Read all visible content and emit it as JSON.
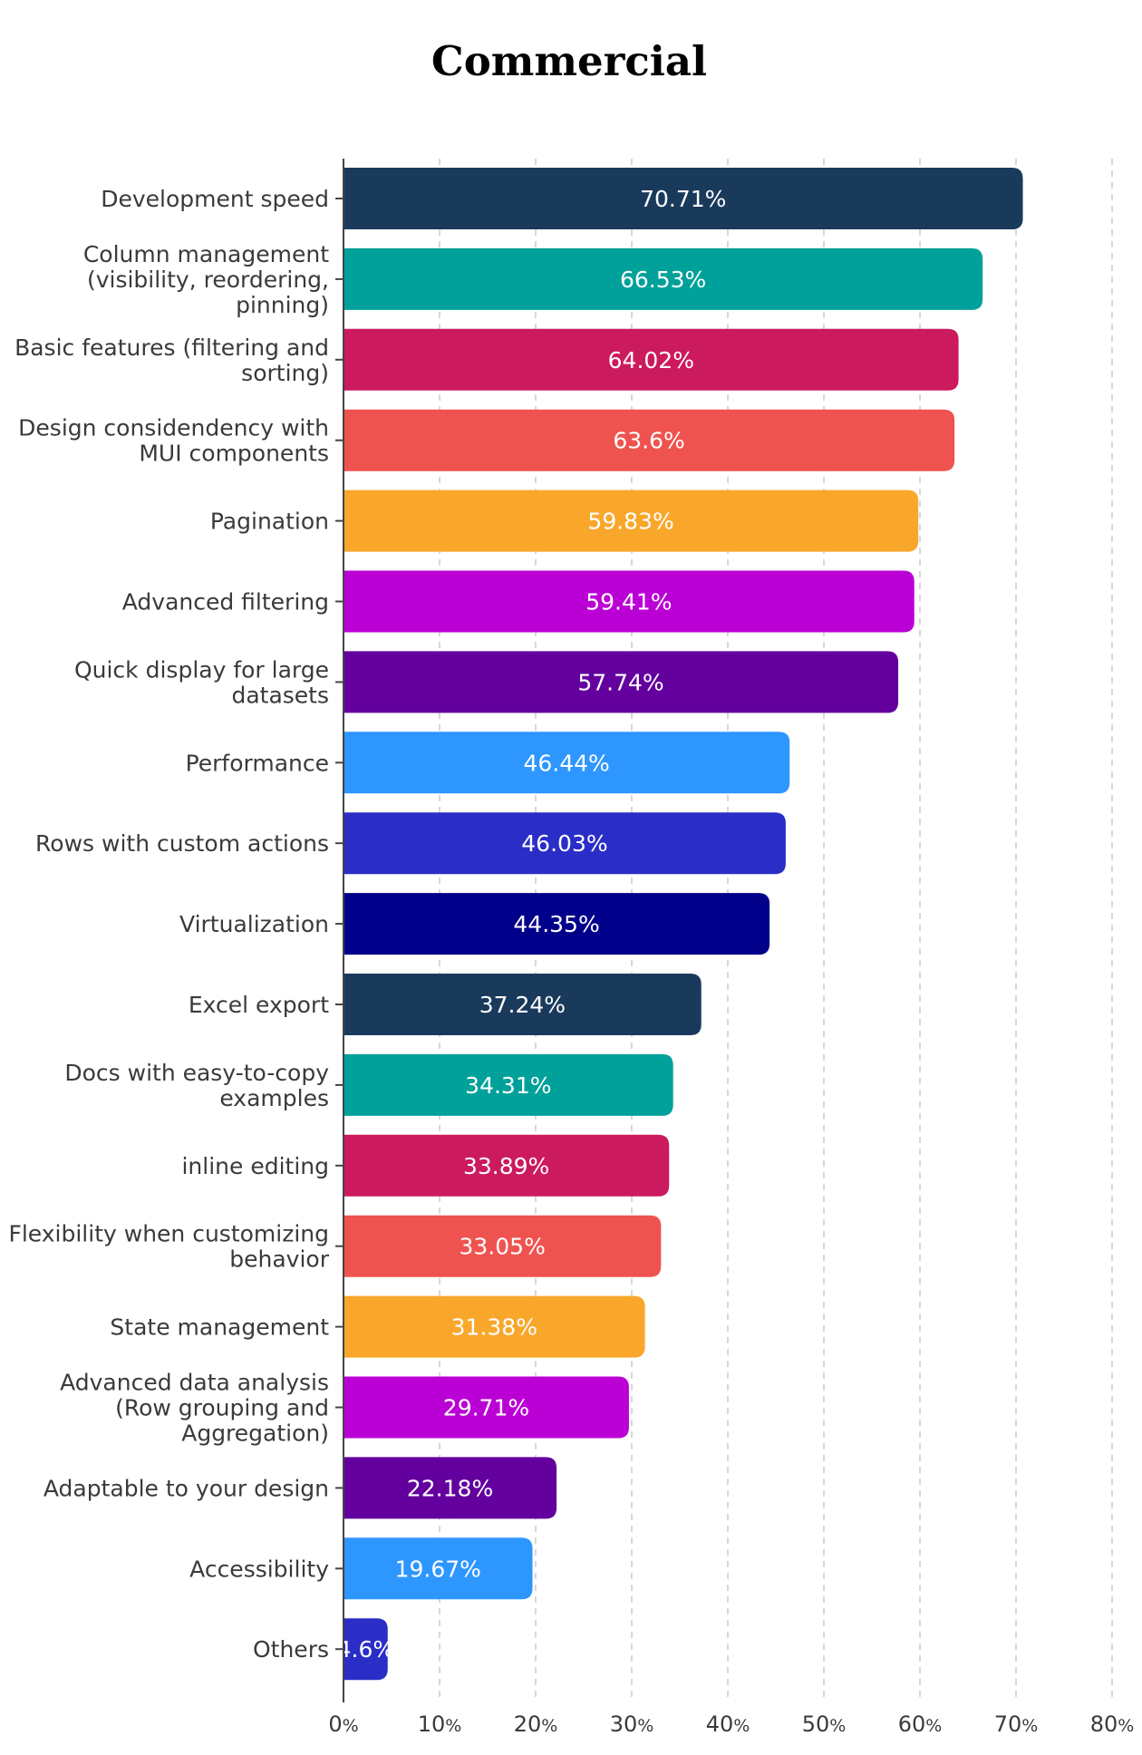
{
  "chart_data": {
    "type": "bar",
    "orientation": "horizontal",
    "title": "Commercial",
    "categories": [
      [
        "Development speed"
      ],
      [
        "Column management",
        "(visibility, reordering,",
        "pinning)"
      ],
      [
        "Basic features (filtering and",
        "sorting)"
      ],
      [
        "Design considendency with",
        "MUI components"
      ],
      [
        "Pagination"
      ],
      [
        "Advanced filtering"
      ],
      [
        "Quick display for large",
        "datasets"
      ],
      [
        "Performance"
      ],
      [
        "Rows with custom actions"
      ],
      [
        "Virtualization"
      ],
      [
        "Excel export"
      ],
      [
        "Docs with easy-to-copy",
        "examples"
      ],
      [
        "inline editing"
      ],
      [
        "Flexibility when customizing",
        "behavior"
      ],
      [
        "State management"
      ],
      [
        "Advanced data analysis",
        "(Row grouping and",
        "Aggregation)"
      ],
      [
        "Adaptable to your design"
      ],
      [
        "Accessibility"
      ],
      [
        "Others"
      ]
    ],
    "values": [
      70.71,
      66.53,
      64.02,
      63.6,
      59.83,
      59.41,
      57.74,
      46.44,
      46.03,
      44.35,
      37.24,
      34.31,
      33.89,
      33.05,
      31.38,
      29.71,
      22.18,
      19.67,
      4.6
    ],
    "data_labels": [
      "70.71%",
      "66.53%",
      "64.02%",
      "63.6%",
      "59.83%",
      "59.41%",
      "57.74%",
      "46.44%",
      "46.03%",
      "44.35%",
      "37.24%",
      "34.31%",
      "33.89%",
      "33.05%",
      "31.38%",
      "29.71%",
      "22.18%",
      "19.67%",
      "4.6%"
    ],
    "colors": [
      "#1a3a5c",
      "#00a19a",
      "#cc1a5e",
      "#ef5350",
      "#f9a72b",
      "#bb00d6",
      "#63009e",
      "#2e96ff",
      "#2a2ec7",
      "#00008b",
      "#1a3a5c",
      "#00a19a",
      "#cc1a5e",
      "#ef5350",
      "#f9a72b",
      "#bb00d6",
      "#63009e",
      "#2e96ff",
      "#2a2ec7"
    ],
    "xlim": [
      0,
      80
    ],
    "x_ticks": [
      0,
      10,
      20,
      30,
      40,
      50,
      60,
      70,
      80
    ],
    "x_tick_suffix": "%",
    "grid": "vertical dashed",
    "xlabel": "",
    "ylabel": ""
  }
}
